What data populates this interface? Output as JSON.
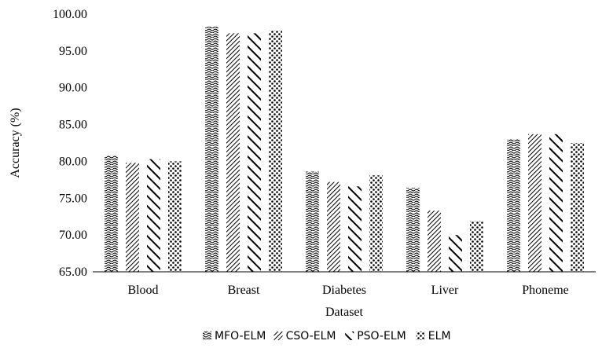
{
  "chart_data": {
    "type": "bar",
    "title": "",
    "xlabel": "Dataset",
    "ylabel": "Accuracy (%)",
    "ylim": [
      65,
      100
    ],
    "yticks": [
      "65.00",
      "70.00",
      "75.00",
      "80.00",
      "85.00",
      "90.00",
      "95.00",
      "100.00"
    ],
    "grid": false,
    "legend_position": "bottom",
    "categories": [
      "Blood",
      "Breast",
      "Diabetes",
      "Liver",
      "Phoneme"
    ],
    "series": [
      {
        "name": "MFO-ELM",
        "pattern": "wave",
        "values": [
          80.8,
          98.3,
          78.6,
          76.4,
          83.0
        ]
      },
      {
        "name": "CSO-ELM",
        "pattern": "diagonal-dense",
        "values": [
          79.8,
          97.4,
          77.2,
          73.3,
          83.7
        ]
      },
      {
        "name": "PSO-ELM",
        "pattern": "diagonal-wide",
        "values": [
          80.3,
          97.4,
          76.6,
          70.0,
          83.7
        ]
      },
      {
        "name": "ELM",
        "pattern": "dots",
        "values": [
          80.0,
          97.8,
          78.1,
          71.9,
          82.5
        ]
      }
    ],
    "colors": {
      "bar_ink": "#000000",
      "axis": "#000000",
      "background": "#ffffff"
    }
  }
}
